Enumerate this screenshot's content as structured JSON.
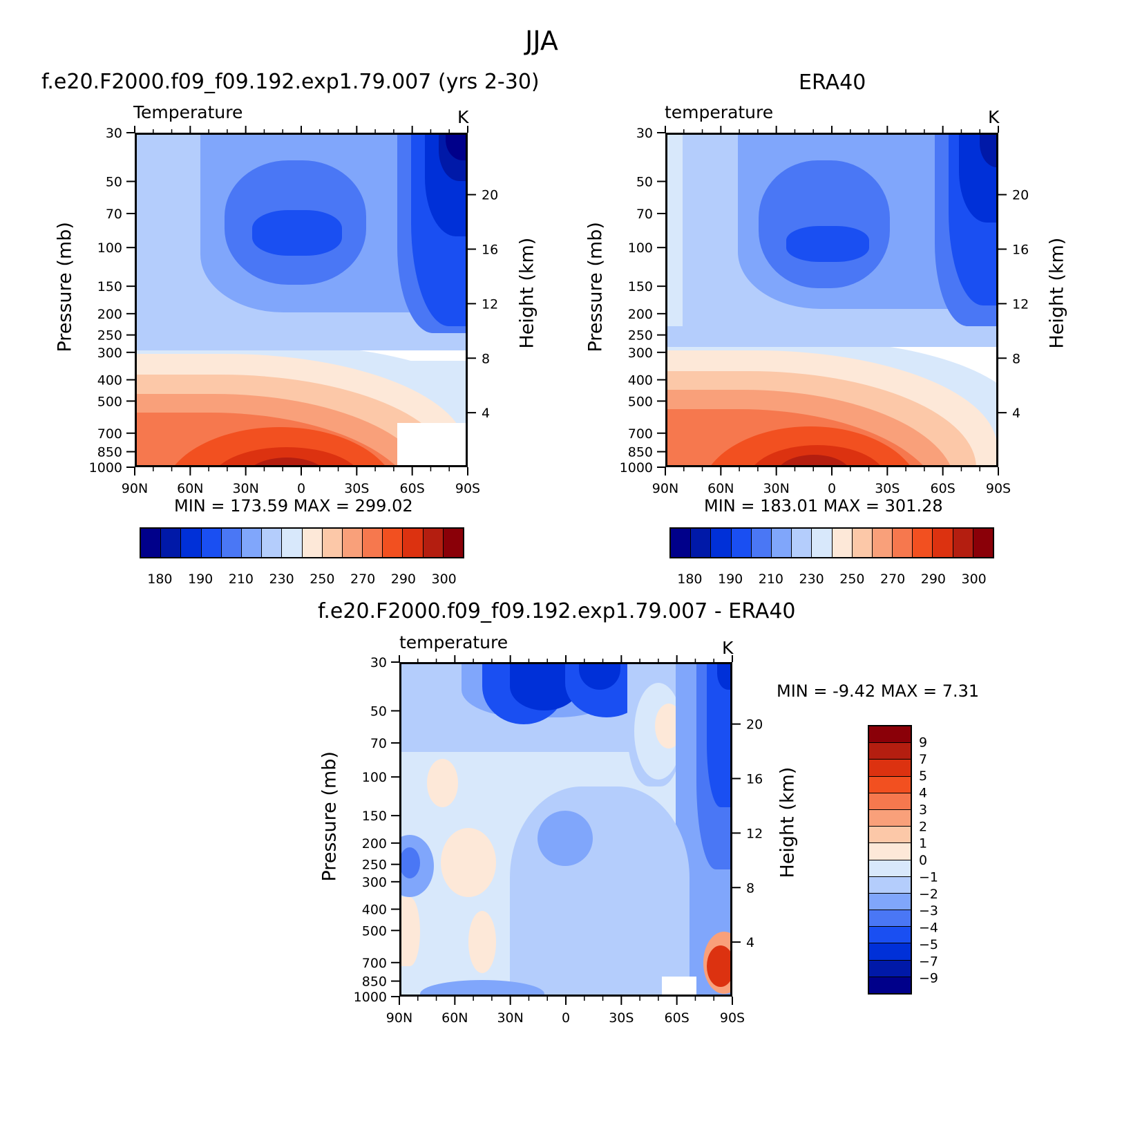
{
  "figure": {
    "title": "JJA"
  },
  "levels": [
    "30",
    "50",
    "70",
    "100",
    "150",
    "200",
    "250",
    "300",
    "400",
    "500",
    "700",
    "850",
    "1000"
  ],
  "lats": [
    "90N",
    "60N",
    "30N",
    "0",
    "30S",
    "60S",
    "90S"
  ],
  "heights": [
    "20",
    "16",
    "12",
    "8",
    "4"
  ],
  "palette_abs": [
    "#00008a",
    "#0019a8",
    "#0030d8",
    "#1a4ff2",
    "#4a77f5",
    "#80a6fb",
    "#b4cdfc",
    "#d8e8fb",
    "#fde8d8",
    "#fcc8a8",
    "#f9a07a",
    "#f6784e",
    "#f25020",
    "#dc3210",
    "#b41e10",
    "#8a0008"
  ],
  "palette_diff": [
    "#8a0008",
    "#b41e10",
    "#dc3210",
    "#f25020",
    "#f6784e",
    "#f9a07a",
    "#fcc8a8",
    "#fde8d8",
    "#d8e8fb",
    "#b4cdfc",
    "#80a6fb",
    "#4a77f5",
    "#1a4ff2",
    "#0030d8",
    "#0019a8",
    "#00008a"
  ],
  "panel1": {
    "run": "f.e20.F2000.f09_f09.192.exp1.79.007 (yrs 2-30)",
    "var": "Temperature",
    "unit": "K",
    "ylabel": "Pressure (mb)",
    "ylabel2": "Height (km)",
    "stats": "MIN =  173.59   MAX =  299.02"
  },
  "panel2": {
    "run": "ERA40",
    "var": "temperature",
    "unit": "K",
    "ylabel": "Pressure (mb)",
    "ylabel2": "Height (km)",
    "stats": "MIN =  183.01   MAX =  301.28"
  },
  "panel3": {
    "run": "f.e20.F2000.f09_f09.192.exp1.79.007 - ERA40",
    "var": "temperature",
    "unit": "K",
    "ylabel": "Pressure (mb)",
    "ylabel2": "Height (km)",
    "stats": "MIN =   -9.42   MAX =    7.31"
  },
  "colorbar_abs": {
    "labels": [
      "180",
      "190",
      "210",
      "230",
      "250",
      "270",
      "290",
      "300"
    ]
  },
  "colorbar_diff": {
    "labels": [
      "9",
      "7",
      "5",
      "4",
      "3",
      "2",
      "1",
      "0",
      "-1",
      "-2",
      "-3",
      "-4",
      "-5",
      "-7",
      "-9"
    ]
  },
  "chart_data": [
    {
      "type": "heatmap",
      "title": "f.e20.F2000.f09_f09.192.exp1.79.007 (yrs 2-30)",
      "subtitle": "Temperature",
      "units": "K",
      "xlabel": "",
      "ylabel": "Pressure (mb)",
      "ylabel_right": "Height (km)",
      "x_ticks": [
        "90N",
        "60N",
        "30N",
        "0",
        "30S",
        "60S",
        "90S"
      ],
      "y_ticks": [
        30,
        50,
        70,
        100,
        150,
        200,
        250,
        300,
        400,
        500,
        700,
        850,
        1000
      ],
      "y_right_ticks": [
        20,
        16,
        12,
        8,
        4
      ],
      "y_scale": "log",
      "min": 173.59,
      "max": 299.02
    },
    {
      "type": "heatmap",
      "title": "ERA40",
      "subtitle": "temperature",
      "units": "K",
      "xlabel": "",
      "ylabel": "Pressure (mb)",
      "ylabel_right": "Height (km)",
      "x_ticks": [
        "90N",
        "60N",
        "30N",
        "0",
        "30S",
        "60S",
        "90S"
      ],
      "y_ticks": [
        30,
        50,
        70,
        100,
        150,
        200,
        250,
        300,
        400,
        500,
        700,
        850,
        1000
      ],
      "y_right_ticks": [
        20,
        16,
        12,
        8,
        4
      ],
      "y_scale": "log",
      "min": 183.01,
      "max": 301.28
    },
    {
      "type": "heatmap",
      "title": "f.e20.F2000.f09_f09.192.exp1.79.007 - ERA40",
      "subtitle": "temperature",
      "units": "K",
      "xlabel": "",
      "ylabel": "Pressure (mb)",
      "ylabel_right": "Height (km)",
      "x_ticks": [
        "90N",
        "60N",
        "30N",
        "0",
        "30S",
        "60S",
        "90S"
      ],
      "y_ticks": [
        30,
        50,
        70,
        100,
        150,
        200,
        250,
        300,
        400,
        500,
        700,
        850,
        1000
      ],
      "y_right_ticks": [
        20,
        16,
        12,
        8,
        4
      ],
      "y_scale": "log",
      "min": -9.42,
      "max": 7.31
    }
  ]
}
